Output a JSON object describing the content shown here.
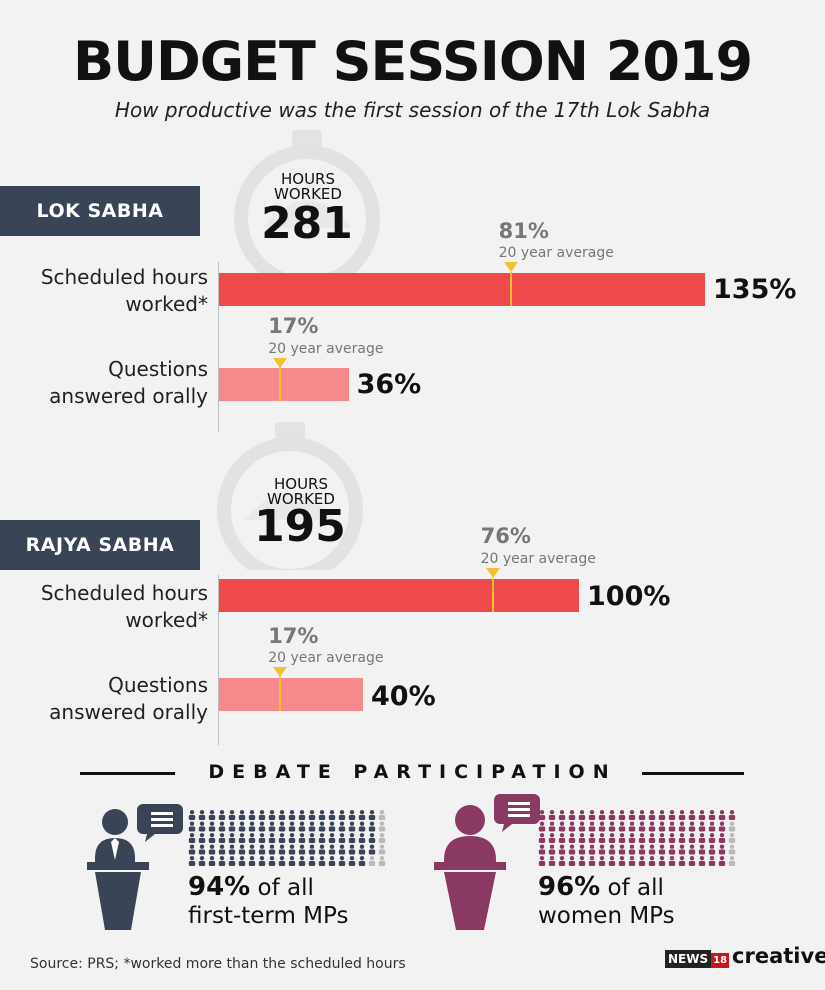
{
  "title": "BUDGET SESSION 2019",
  "subtitle": "How productive was the first session of the 17th Lok Sabha",
  "chart_data": [
    {
      "type": "bar",
      "house": "LOK SABHA",
      "hours_worked_label": "HOURS WORKED",
      "hours_worked": "281",
      "categories": [
        "Scheduled hours worked*",
        "Questions answered orally"
      ],
      "values": [
        135,
        36
      ],
      "value_labels": [
        "135%",
        "36%"
      ],
      "averages": [
        81,
        17
      ],
      "average_labels": [
        "81%",
        "17%"
      ],
      "average_caption": "20 year average"
    },
    {
      "type": "bar",
      "house": "RAJYA SABHA",
      "hours_worked_label": "HOURS WORKED",
      "hours_worked": "195",
      "categories": [
        "Scheduled hours worked*",
        "Questions answered orally"
      ],
      "values": [
        100,
        40
      ],
      "value_labels": [
        "100%",
        "40%"
      ],
      "averages": [
        76,
        17
      ],
      "average_labels": [
        "76%",
        "17%"
      ],
      "average_caption": "20 year average"
    }
  ],
  "debate": {
    "heading": "DEBATE PARTICIPATION",
    "first_term": {
      "pct": "94%",
      "text1": "of all",
      "text2": "first-term MPs",
      "value": 94,
      "icon": "speaker-man-icon",
      "color": "#3a4457"
    },
    "women": {
      "pct": "96%",
      "text1": "of all",
      "text2": "women MPs",
      "value": 96,
      "icon": "speaker-woman-icon",
      "color": "#8a3a62"
    }
  },
  "colors": {
    "bar_scheduled": "#f0494b",
    "bar_questions": "#f6898c",
    "average_marker": "#f2c12e",
    "tag_bg": "#3a4457",
    "grey_person": "#b9b9b9"
  },
  "source": "Source: PRS; *worked more than the scheduled hours",
  "brand": {
    "news": "NEWS",
    "num": "18",
    "creative": "creative"
  }
}
